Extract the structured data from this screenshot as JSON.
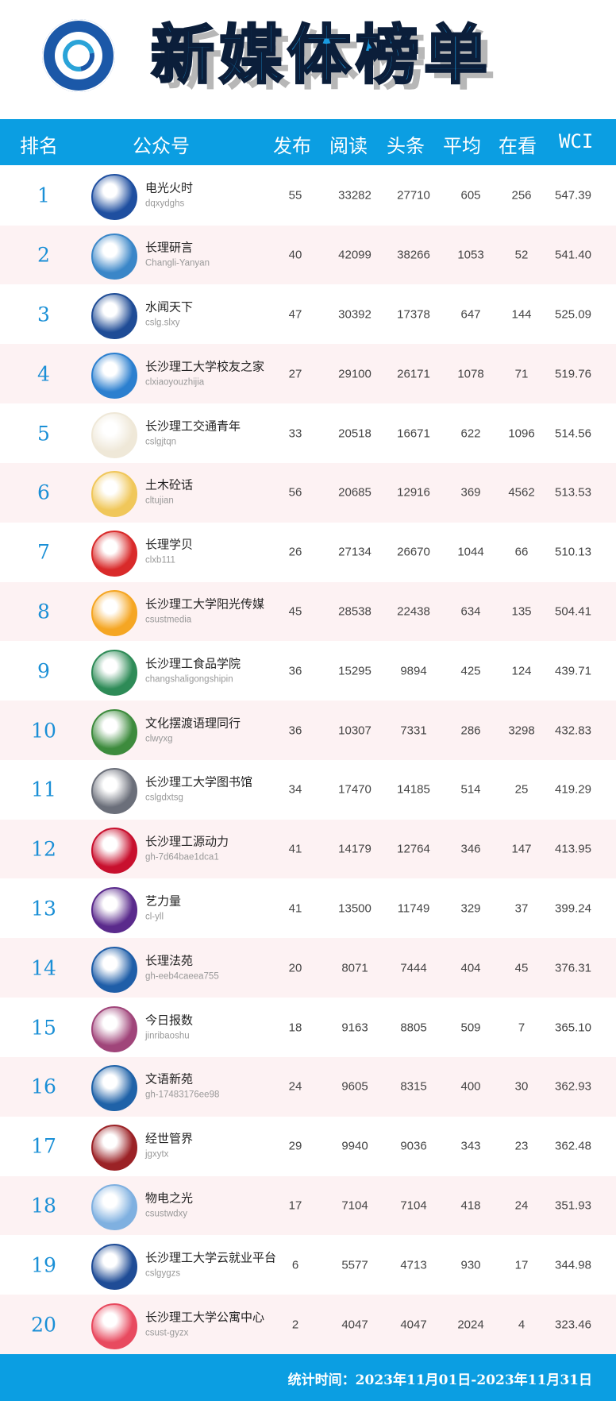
{
  "header": {
    "title": "新媒体榜单",
    "logo": "changsha-university-of-science-technology-logo"
  },
  "columns": {
    "rank": "排名",
    "account": "公众号",
    "posts": "发布",
    "reads": "阅读",
    "headline": "头条",
    "average": "平均",
    "likes": "在看",
    "wci": "WCI"
  },
  "colors": {
    "accent": "#0b9ee2",
    "rank_text": "#1a8fd6",
    "alt_row": "#fdf2f3"
  },
  "rows": [
    {
      "rank": "1",
      "name": "电光火时",
      "id": "dqxydghs",
      "posts": "55",
      "reads": "33282",
      "headline": "27710",
      "average": "605",
      "likes": "256",
      "wci": "547.39",
      "avatar_color": "#1f4fa0"
    },
    {
      "rank": "2",
      "name": "长理研言",
      "id": "Changli-Yanyan",
      "posts": "40",
      "reads": "42099",
      "headline": "38266",
      "average": "1053",
      "likes": "52",
      "wci": "541.40",
      "avatar_color": "#3a86c8"
    },
    {
      "rank": "3",
      "name": "水闻天下",
      "id": "cslg.slxy",
      "posts": "47",
      "reads": "30392",
      "headline": "17378",
      "average": "647",
      "likes": "144",
      "wci": "525.09",
      "avatar_color": "#1f4c96"
    },
    {
      "rank": "4",
      "name": "长沙理工大学校友之家",
      "id": "clxiaoyouzhijia",
      "posts": "27",
      "reads": "29100",
      "headline": "26171",
      "average": "1078",
      "likes": "71",
      "wci": "519.76",
      "avatar_color": "#2b7fcf"
    },
    {
      "rank": "5",
      "name": "长沙理工交通青年",
      "id": "cslgjtqn",
      "posts": "33",
      "reads": "20518",
      "headline": "16671",
      "average": "622",
      "likes": "1096",
      "wci": "514.56",
      "avatar_color": "#efe8d8"
    },
    {
      "rank": "6",
      "name": "土木砼话",
      "id": "cltujian",
      "posts": "56",
      "reads": "20685",
      "headline": "12916",
      "average": "369",
      "likes": "4562",
      "wci": "513.53",
      "avatar_color": "#f0c75a"
    },
    {
      "rank": "7",
      "name": "长理学贝",
      "id": "clxb111",
      "posts": "26",
      "reads": "27134",
      "headline": "26670",
      "average": "1044",
      "likes": "66",
      "wci": "510.13",
      "avatar_color": "#d92a2a"
    },
    {
      "rank": "8",
      "name": "长沙理工大学阳光传媒",
      "id": "csustmedia",
      "posts": "45",
      "reads": "28538",
      "headline": "22438",
      "average": "634",
      "likes": "135",
      "wci": "504.41",
      "avatar_color": "#f5a623"
    },
    {
      "rank": "9",
      "name": "长沙理工食品学院",
      "id": "changshaligongshipin",
      "posts": "36",
      "reads": "15295",
      "headline": "9894",
      "average": "425",
      "likes": "124",
      "wci": "439.71",
      "avatar_color": "#2e8b57"
    },
    {
      "rank": "10",
      "name": "文化摆渡语理同行",
      "id": "clwyxg",
      "posts": "36",
      "reads": "10307",
      "headline": "7331",
      "average": "286",
      "likes": "3298",
      "wci": "432.83",
      "avatar_color": "#3d8b3d"
    },
    {
      "rank": "11",
      "name": "长沙理工大学图书馆",
      "id": "cslgdxtsg",
      "posts": "34",
      "reads": "17470",
      "headline": "14185",
      "average": "514",
      "likes": "25",
      "wci": "419.29",
      "avatar_color": "#6b6f7a"
    },
    {
      "rank": "12",
      "name": "长沙理工源动力",
      "id": "gh-7d64bae1dca1",
      "posts": "41",
      "reads": "14179",
      "headline": "12764",
      "average": "346",
      "likes": "147",
      "wci": "413.95",
      "avatar_color": "#c8102e"
    },
    {
      "rank": "13",
      "name": "艺力量",
      "id": "cl-yll",
      "posts": "41",
      "reads": "13500",
      "headline": "11749",
      "average": "329",
      "likes": "37",
      "wci": "399.24",
      "avatar_color": "#5a2a8c"
    },
    {
      "rank": "14",
      "name": "长理法苑",
      "id": "gh-eeb4caeea755",
      "posts": "20",
      "reads": "8071",
      "headline": "7444",
      "average": "404",
      "likes": "45",
      "wci": "376.31",
      "avatar_color": "#1f5ea8"
    },
    {
      "rank": "15",
      "name": "今日报数",
      "id": "jinribaoshu",
      "posts": "18",
      "reads": "9163",
      "headline": "8805",
      "average": "509",
      "likes": "7",
      "wci": "365.10",
      "avatar_color": "#a0457a"
    },
    {
      "rank": "16",
      "name": "文语新苑",
      "id": "gh-17483176ee98",
      "posts": "24",
      "reads": "9605",
      "headline": "8315",
      "average": "400",
      "likes": "30",
      "wci": "362.93",
      "avatar_color": "#1f62a8"
    },
    {
      "rank": "17",
      "name": "经世管界",
      "id": "jgxytx",
      "posts": "29",
      "reads": "9940",
      "headline": "9036",
      "average": "343",
      "likes": "23",
      "wci": "362.48",
      "avatar_color": "#9b2226"
    },
    {
      "rank": "18",
      "name": "物电之光",
      "id": "csustwdxy",
      "posts": "17",
      "reads": "7104",
      "headline": "7104",
      "average": "418",
      "likes": "24",
      "wci": "351.93",
      "avatar_color": "#7fb0e0"
    },
    {
      "rank": "19",
      "name": "长沙理工大学云就业平台",
      "id": "cslgygzs",
      "posts": "6",
      "reads": "5577",
      "headline": "4713",
      "average": "930",
      "likes": "17",
      "wci": "344.98",
      "avatar_color": "#1f4c96"
    },
    {
      "rank": "20",
      "name": "长沙理工大学公寓中心",
      "id": "csust-gyzx",
      "posts": "2",
      "reads": "4047",
      "headline": "4047",
      "average": "2024",
      "likes": "4",
      "wci": "323.46",
      "avatar_color": "#e84a5f"
    }
  ],
  "footer": {
    "period": "统计时间：2023年11月01日-2023年11月31日"
  }
}
